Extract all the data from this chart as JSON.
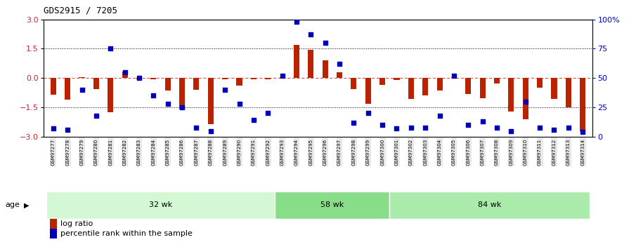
{
  "title": "GDS2915 / 7205",
  "samples": [
    "GSM97277",
    "GSM97278",
    "GSM97279",
    "GSM97280",
    "GSM97281",
    "GSM97282",
    "GSM97283",
    "GSM97284",
    "GSM97285",
    "GSM97286",
    "GSM97287",
    "GSM97288",
    "GSM97289",
    "GSM97290",
    "GSM97291",
    "GSM97292",
    "GSM97293",
    "GSM97294",
    "GSM97295",
    "GSM97296",
    "GSM97297",
    "GSM97298",
    "GSM97299",
    "GSM97300",
    "GSM97301",
    "GSM97302",
    "GSM97303",
    "GSM97304",
    "GSM97305",
    "GSM97306",
    "GSM97307",
    "GSM97308",
    "GSM97309",
    "GSM97310",
    "GSM97311",
    "GSM97312",
    "GSM97313",
    "GSM97314"
  ],
  "log_ratio": [
    -0.85,
    -1.1,
    0.05,
    -0.55,
    -1.75,
    0.35,
    -0.05,
    -0.08,
    -0.65,
    -1.6,
    -0.6,
    -2.35,
    -0.08,
    -0.38,
    -0.05,
    -0.08,
    0.05,
    1.7,
    1.45,
    0.92,
    0.28,
    -0.55,
    -1.3,
    -0.35,
    -0.1,
    -1.05,
    -0.9,
    -0.65,
    0.05,
    -0.82,
    -1.02,
    -0.28,
    -1.7,
    -2.1,
    -0.5,
    -1.05,
    -1.5,
    -2.7
  ],
  "percentile": [
    7,
    6,
    40,
    18,
    75,
    55,
    50,
    35,
    28,
    25,
    8,
    5,
    40,
    28,
    14,
    20,
    52,
    98,
    87,
    80,
    62,
    12,
    20,
    10,
    7,
    8,
    8,
    18,
    52,
    10,
    13,
    8,
    5,
    30,
    8,
    6,
    8,
    4
  ],
  "groups": [
    {
      "label": "32 wk",
      "start": 0,
      "end": 16,
      "color": "#d4f7d4"
    },
    {
      "label": "58 wk",
      "start": 16,
      "end": 24,
      "color": "#88dd88"
    },
    {
      "label": "84 wk",
      "start": 24,
      "end": 38,
      "color": "#aaeaaa"
    }
  ],
  "bar_color": "#bb2200",
  "dot_color": "#0000bb",
  "ylim": [
    -3,
    3
  ],
  "y2lim": [
    0,
    100
  ],
  "yticks": [
    -3,
    -1.5,
    0,
    1.5,
    3
  ],
  "y2ticks": [
    0,
    25,
    50,
    75,
    100
  ],
  "hlines_dotted": [
    1.5,
    -1.5
  ],
  "zero_line_color": "#cc2222",
  "legend_items": [
    {
      "color": "#bb2200",
      "label": "log ratio"
    },
    {
      "color": "#0000bb",
      "label": "percentile rank within the sample"
    }
  ]
}
